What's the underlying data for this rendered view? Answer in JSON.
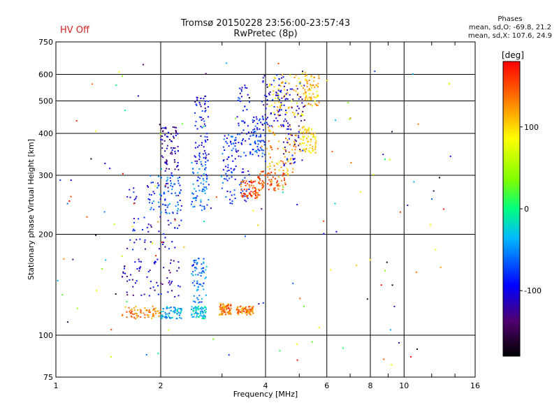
{
  "status": {
    "hv_label": "HV Off"
  },
  "chart_data": {
    "type": "scatter",
    "title": "Tromsø 20150228 23:56:00-23:57:43",
    "subtitle": "RwPretec (8p)",
    "xlabel": "Frequency [MHz]",
    "ylabel": "Stationary phase Virtual Height [km]",
    "x_scale": "log",
    "y_scale": "log",
    "xlim": [
      1,
      16
    ],
    "ylim": [
      75,
      750
    ],
    "x_ticks": [
      1,
      2,
      4,
      6,
      8,
      10,
      16
    ],
    "y_ticks": [
      75,
      100,
      200,
      300,
      400,
      500,
      600,
      750
    ],
    "grid": true,
    "colorbar": {
      "label": "[deg]",
      "ticks": [
        100,
        0,
        -100
      ],
      "range": [
        -180,
        180
      ]
    },
    "stats": {
      "heading": "Phases",
      "line_o": "mean, sd,O: -69.8, 21.2",
      "line_x": "mean, sd,X: 107.6, 24.9"
    },
    "clusters": [
      {
        "x": [
          1.55,
          2.0
        ],
        "y": [
          112,
          122
        ],
        "phase": 130
      },
      {
        "x": [
          2.0,
          2.3
        ],
        "y": [
          112,
          122
        ],
        "phase": -40
      },
      {
        "x": [
          2.45,
          2.7
        ],
        "y": [
          112,
          122
        ],
        "phase": -30
      },
      {
        "x": [
          2.95,
          3.2
        ],
        "y": [
          115,
          125
        ],
        "phase": 135
      },
      {
        "x": [
          3.3,
          3.7
        ],
        "y": [
          115,
          122
        ],
        "phase": 135
      },
      {
        "x": [
          1.55,
          2.3
        ],
        "y": [
          130,
          170
        ],
        "phase": -110
      },
      {
        "x": [
          2.45,
          2.7
        ],
        "y": [
          125,
          170
        ],
        "phase": -60
      },
      {
        "x": [
          1.6,
          2.3
        ],
        "y": [
          180,
          290
        ],
        "phase": -100
      },
      {
        "x": [
          1.85,
          2.3
        ],
        "y": [
          230,
          300
        ],
        "phase": -65
      },
      {
        "x": [
          2.45,
          2.75
        ],
        "y": [
          235,
          330
        ],
        "phase": -60
      },
      {
        "x": [
          2.5,
          2.75
        ],
        "y": [
          330,
          520
        ],
        "phase": -100
      },
      {
        "x": [
          2.0,
          2.25
        ],
        "y": [
          300,
          420
        ],
        "phase": -120
      },
      {
        "x": [
          3.0,
          3.3
        ],
        "y": [
          245,
          400
        ],
        "phase": -80
      },
      {
        "x": [
          3.3,
          3.6
        ],
        "y": [
          250,
          560
        ],
        "phase": -90
      },
      {
        "x": [
          3.4,
          3.85
        ],
        "y": [
          255,
          290
        ],
        "phase": 150
      },
      {
        "x": [
          3.8,
          4.6
        ],
        "y": [
          270,
          310
        ],
        "phase": 145
      },
      {
        "x": [
          4.0,
          4.9
        ],
        "y": [
          300,
          420
        ],
        "phase": 120
      },
      {
        "x": [
          3.6,
          4.0
        ],
        "y": [
          340,
          450
        ],
        "phase": -80
      },
      {
        "x": [
          3.9,
          4.6
        ],
        "y": [
          420,
          600
        ],
        "phase": -100
      },
      {
        "x": [
          4.1,
          5.2
        ],
        "y": [
          450,
          620
        ],
        "phase": 100
      },
      {
        "x": [
          4.5,
          5.2
        ],
        "y": [
          320,
          560
        ],
        "phase": -110
      },
      {
        "x": [
          5.0,
          5.6
        ],
        "y": [
          350,
          420
        ],
        "phase": 100
      },
      {
        "x": [
          5.2,
          5.7
        ],
        "y": [
          480,
          600
        ],
        "phase": 110
      }
    ],
    "sparse_range": {
      "x": [
        1.0,
        14.0
      ],
      "y": [
        80,
        700
      ]
    }
  }
}
